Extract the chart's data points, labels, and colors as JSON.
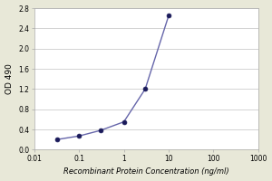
{
  "x": [
    0.032,
    0.1,
    0.3,
    1.0,
    3.0,
    10.0
  ],
  "y": [
    0.2,
    0.27,
    0.38,
    0.55,
    1.2,
    2.65
  ],
  "line_color": "#6666aa",
  "marker_color": "#1a1a5a",
  "marker_style": "o",
  "marker_size": 3.5,
  "line_width": 1.0,
  "xlabel": "Recombinant Protein Concentration (ng/ml)",
  "ylabel": "OD 490",
  "xlim_log": [
    0.01,
    1000
  ],
  "ylim": [
    0.0,
    2.8
  ],
  "yticks": [
    0.0,
    0.4,
    0.8,
    1.2,
    1.6,
    2.0,
    2.4,
    2.8
  ],
  "xticks": [
    0.01,
    0.1,
    1,
    10,
    100,
    1000
  ],
  "xtick_labels": [
    "0.01",
    "0.1",
    "1",
    "10",
    "100",
    "1000"
  ],
  "plot_bg_color": "#ffffff",
  "outer_bg_color": "#e8e8d8",
  "grid_color": "#cccccc",
  "label_fontsize": 6.0,
  "tick_fontsize": 5.5,
  "ylabel_fontsize": 6.5
}
